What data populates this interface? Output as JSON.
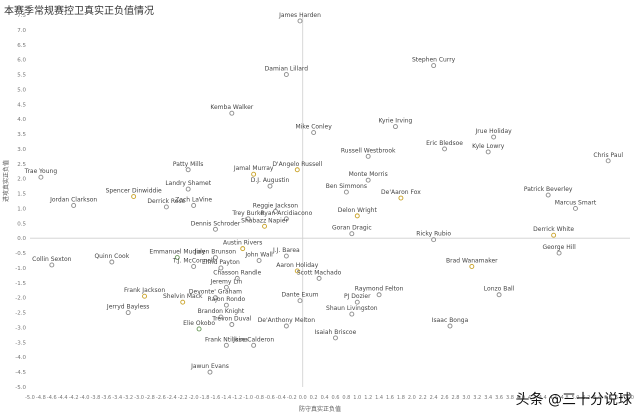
{
  "title": "本赛季常规赛控卫真实正负值情况",
  "watermark": "头条 @三十分说球",
  "chart_data": {
    "type": "scatter",
    "title": "本赛季常规赛控卫真实正负值情况",
    "xlabel": "防守真实正负值",
    "ylabel": "进攻真实正负值",
    "xlim": [
      -5.0,
      6.0
    ],
    "ylim": [
      -5.0,
      7.5
    ],
    "grid": false,
    "x_ticks": [
      "-5.0",
      "-4.8",
      "-4.6",
      "-4.4",
      "-4.2",
      "-4.0",
      "-3.8",
      "-3.6",
      "-3.4",
      "-3.2",
      "-3.0",
      "-2.8",
      "-2.6",
      "-2.4",
      "-2.2",
      "-2.0",
      "-1.8",
      "-1.6",
      "-1.4",
      "-1.2",
      "-1.0",
      "-0.8",
      "-0.6",
      "-0.4",
      "-0.2",
      "0.0",
      "0.2",
      "0.4",
      "0.6",
      "0.8",
      "1.0",
      "1.2",
      "1.4",
      "1.6",
      "1.8",
      "2.0",
      "2.2",
      "2.4",
      "2.6",
      "2.8",
      "3.0",
      "3.2",
      "3.4",
      "3.6",
      "3.8",
      "4.0",
      "4.2",
      "4.4",
      "4.6",
      "4.8",
      "5.0",
      "5.2",
      "5.4",
      "5.6",
      "5.8",
      "6.0"
    ],
    "y_ticks": [
      "7.5",
      "7.0",
      "6.5",
      "6.0",
      "5.5",
      "5.0",
      "4.5",
      "4.0",
      "3.5",
      "3.0",
      "2.5",
      "2.0",
      "1.5",
      "1.0",
      "0.5",
      "0.0",
      "-0.5",
      "-1.0",
      "-1.5",
      "-2.0",
      "-2.5",
      "-3.0",
      "-3.5",
      "-4.0",
      "-4.5",
      "-5.0"
    ],
    "point_colors": {
      "default": "#8a8a8a",
      "highlight": "#c9a227",
      "green": "#6a9a5a"
    },
    "points": [
      {
        "name": "James Harden",
        "x": -0.05,
        "y": 7.3,
        "c": "default"
      },
      {
        "name": "Stephen Curry",
        "x": 2.4,
        "y": 5.8,
        "c": "default"
      },
      {
        "name": "Damian Lillard",
        "x": -0.3,
        "y": 5.5,
        "c": "default"
      },
      {
        "name": "Kemba Walker",
        "x": -1.3,
        "y": 4.2,
        "c": "default"
      },
      {
        "name": "Kyrie Irving",
        "x": 1.7,
        "y": 3.75,
        "c": "default"
      },
      {
        "name": "Mike Conley",
        "x": 0.2,
        "y": 3.55,
        "c": "default"
      },
      {
        "name": "Jrue Holiday",
        "x": 3.5,
        "y": 3.4,
        "c": "default"
      },
      {
        "name": "Eric Bledsoe",
        "x": 2.6,
        "y": 3.0,
        "c": "default"
      },
      {
        "name": "Kyle Lowry",
        "x": 3.4,
        "y": 2.9,
        "c": "default"
      },
      {
        "name": "Chris Paul",
        "x": 5.6,
        "y": 2.6,
        "c": "default"
      },
      {
        "name": "Russell Westbrook",
        "x": 1.2,
        "y": 2.75,
        "c": "default"
      },
      {
        "name": "Patty Mills",
        "x": -2.1,
        "y": 2.3,
        "c": "default"
      },
      {
        "name": "Jamal Murray",
        "x": -0.9,
        "y": 2.15,
        "c": "highlight"
      },
      {
        "name": "D'Angelo Russell",
        "x": -0.1,
        "y": 2.3,
        "c": "highlight"
      },
      {
        "name": "Monte Morris",
        "x": 1.2,
        "y": 1.95,
        "c": "default"
      },
      {
        "name": "Trae Young",
        "x": -4.8,
        "y": 2.05,
        "c": "default"
      },
      {
        "name": "Landry Shamet",
        "x": -2.1,
        "y": 1.65,
        "c": "default"
      },
      {
        "name": "D.J. Augustin",
        "x": -0.6,
        "y": 1.75,
        "c": "default"
      },
      {
        "name": "Ben Simmons",
        "x": 0.8,
        "y": 1.55,
        "c": "default"
      },
      {
        "name": "De'Aaron Fox",
        "x": 1.8,
        "y": 1.35,
        "c": "highlight"
      },
      {
        "name": "Patrick Beverley",
        "x": 4.5,
        "y": 1.45,
        "c": "default"
      },
      {
        "name": "Spencer Dinwiddie",
        "x": -3.1,
        "y": 1.4,
        "c": "highlight"
      },
      {
        "name": "Zach LaVine",
        "x": -2.0,
        "y": 1.1,
        "c": "default"
      },
      {
        "name": "Derrick Rose",
        "x": -2.5,
        "y": 1.05,
        "c": "default"
      },
      {
        "name": "Jordan Clarkson",
        "x": -4.2,
        "y": 1.1,
        "c": "default"
      },
      {
        "name": "Reggie Jackson",
        "x": -0.5,
        "y": 0.9,
        "c": "default"
      },
      {
        "name": "Marcus Smart",
        "x": 5.0,
        "y": 1.0,
        "c": "default"
      },
      {
        "name": "Trey Burke",
        "x": -1.0,
        "y": 0.65,
        "c": "default"
      },
      {
        "name": "Ryan Arcidiacono",
        "x": -0.3,
        "y": 0.65,
        "c": "default"
      },
      {
        "name": "Delon Wright",
        "x": 1.0,
        "y": 0.75,
        "c": "highlight"
      },
      {
        "name": "Shabazz Napier",
        "x": -0.7,
        "y": 0.4,
        "c": "highlight"
      },
      {
        "name": "Dennis Schroder",
        "x": -1.6,
        "y": 0.3,
        "c": "default"
      },
      {
        "name": "Goran Dragic",
        "x": 0.9,
        "y": 0.15,
        "c": "default"
      },
      {
        "name": "Derrick White",
        "x": 4.6,
        "y": 0.1,
        "c": "highlight"
      },
      {
        "name": "Ricky Rubio",
        "x": 2.4,
        "y": -0.05,
        "c": "default"
      },
      {
        "name": "George Hill",
        "x": 4.7,
        "y": -0.5,
        "c": "default"
      },
      {
        "name": "Austin Rivers",
        "x": -1.1,
        "y": -0.35,
        "c": "highlight"
      },
      {
        "name": "Jalen Brunson",
        "x": -1.6,
        "y": -0.65,
        "c": "default"
      },
      {
        "name": "Emmanuel Mudiay",
        "x": -2.3,
        "y": -0.65,
        "c": "green"
      },
      {
        "name": "J.J. Barea",
        "x": -0.3,
        "y": -0.6,
        "c": "default"
      },
      {
        "name": "John Wall",
        "x": -0.8,
        "y": -0.75,
        "c": "default"
      },
      {
        "name": "Elfrid Payton",
        "x": -1.5,
        "y": -1.0,
        "c": "default"
      },
      {
        "name": "T.J. McConnell",
        "x": -2.0,
        "y": -0.95,
        "c": "default"
      },
      {
        "name": "Quinn Cook",
        "x": -3.5,
        "y": -0.8,
        "c": "default"
      },
      {
        "name": "Collin Sexton",
        "x": -4.6,
        "y": -0.9,
        "c": "default"
      },
      {
        "name": "Brad Wanamaker",
        "x": 3.1,
        "y": -0.95,
        "c": "highlight"
      },
      {
        "name": "Aaron Holiday",
        "x": -0.1,
        "y": -1.1,
        "c": "highlight"
      },
      {
        "name": "Chasson Randle",
        "x": -1.2,
        "y": -1.35,
        "c": "default"
      },
      {
        "name": "Scott Machado",
        "x": 0.3,
        "y": -1.35,
        "c": "default"
      },
      {
        "name": "Jeremy Lin",
        "x": -1.4,
        "y": -1.65,
        "c": "default"
      },
      {
        "name": "Raymond Felton",
        "x": 1.4,
        "y": -1.9,
        "c": "default"
      },
      {
        "name": "Lonzo Ball",
        "x": 3.6,
        "y": -1.9,
        "c": "default"
      },
      {
        "name": "Devonte' Graham",
        "x": -1.6,
        "y": -2.0,
        "c": "default"
      },
      {
        "name": "Dante Exum",
        "x": -0.05,
        "y": -2.1,
        "c": "default"
      },
      {
        "name": "PJ Dozier",
        "x": 1.0,
        "y": -2.15,
        "c": "default"
      },
      {
        "name": "Frank Jackson",
        "x": -2.9,
        "y": -1.95,
        "c": "highlight"
      },
      {
        "name": "Shelvin Mack",
        "x": -2.2,
        "y": -2.15,
        "c": "highlight"
      },
      {
        "name": "Rajon Rondo",
        "x": -1.4,
        "y": -2.25,
        "c": "default"
      },
      {
        "name": "Jerryd Bayless",
        "x": -3.2,
        "y": -2.5,
        "c": "default"
      },
      {
        "name": "Shaun Livingston",
        "x": 0.9,
        "y": -2.55,
        "c": "default"
      },
      {
        "name": "Brandon Knight",
        "x": -1.5,
        "y": -2.65,
        "c": "default"
      },
      {
        "name": "De'Anthony Melton",
        "x": -0.3,
        "y": -2.95,
        "c": "default"
      },
      {
        "name": "Isaac Bonga",
        "x": 2.7,
        "y": -2.95,
        "c": "default"
      },
      {
        "name": "Trevon Duval",
        "x": -1.3,
        "y": -2.9,
        "c": "default"
      },
      {
        "name": "Elie Okobo",
        "x": -1.9,
        "y": -3.05,
        "c": "green"
      },
      {
        "name": "Isaiah Briscoe",
        "x": 0.6,
        "y": -3.35,
        "c": "default"
      },
      {
        "name": "Frank Ntilikina",
        "x": -1.4,
        "y": -3.6,
        "c": "default"
      },
      {
        "name": "Jose Calderon",
        "x": -0.9,
        "y": -3.6,
        "c": "default"
      },
      {
        "name": "Jawun Evans",
        "x": -1.7,
        "y": -4.5,
        "c": "default"
      }
    ]
  }
}
